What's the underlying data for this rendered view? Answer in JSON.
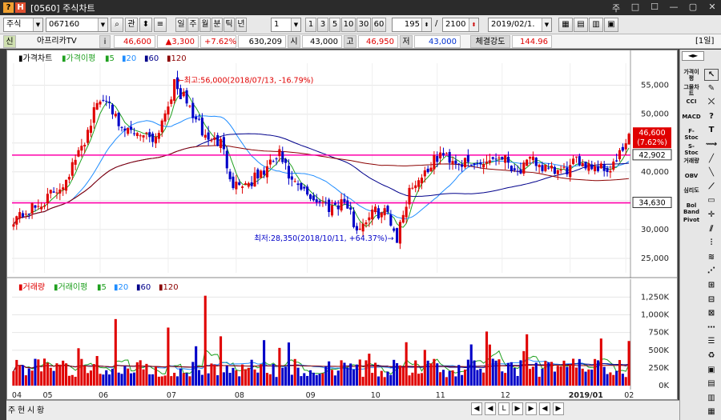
{
  "window": {
    "code": "[0560]",
    "title": "주식차트",
    "controls": [
      "주",
      "□",
      "☐",
      "—",
      "▢",
      "✕"
    ]
  },
  "toolbar": {
    "market": "주식",
    "code": "067160",
    "btn_search": "⌕",
    "btn_related": "관",
    "periods": [
      "주",
      "월",
      "분",
      "틱",
      "년"
    ],
    "interval": "1",
    "interval_buttons": [
      "1",
      "3",
      "5",
      "10",
      "30",
      "60"
    ],
    "count": "195",
    "total": "2100",
    "date": "2019/02/1․",
    "page_indicator": "[1일]"
  },
  "info": {
    "flag": "신",
    "name": "아프리카TV",
    "i": "i",
    "price": "46,600",
    "change": "▲3,300",
    "change_pct": "+7.62%",
    "volume": "630,209",
    "open_label": "시",
    "open": "43,000",
    "high_label": "고",
    "high": "46,950",
    "low_label": "저",
    "low": "43,000",
    "strength_label": "체결강도",
    "strength": "144.96"
  },
  "price_panel": {
    "legend": [
      "가격차트",
      "가격이평",
      "5",
      "20",
      "60",
      "120"
    ],
    "y_ticks": [
      "55,000",
      "50,000",
      "45,000",
      "40,000",
      "35,000",
      "30,000",
      "25,000"
    ],
    "max_note": "←최고:56,000(2018/07/13, -16.79%)",
    "min_note": "최저:28,350(2018/10/11, +64.37%)→",
    "last_price": "46,600",
    "last_pct": "(7.62%)",
    "line_upper": "42,902",
    "line_lower": "34,630",
    "line_right_value": "40,000"
  },
  "volume_panel": {
    "legend": [
      "거래량",
      "거래이평",
      "5",
      "20",
      "60",
      "120"
    ],
    "y_ticks": [
      "1,250K",
      "1,000K",
      "750K",
      "500K",
      "250K",
      "0K"
    ]
  },
  "x_axis": {
    "labels": [
      "04",
      "05",
      "06",
      "07",
      "08",
      "09",
      "10",
      "11",
      "12",
      "2019/01",
      "02"
    ]
  },
  "sidebar": {
    "buttons": [
      "가격이평",
      "그물차트",
      "CCI",
      "MACD",
      "F-Stoc",
      "S-Stoc",
      "거래량",
      "OBV",
      "심리도",
      "Bol Band",
      "Pivot"
    ]
  },
  "bottom": {
    "tabs": [
      "주",
      "현",
      "시",
      "황"
    ],
    "nav": [
      "◀",
      "◀",
      "L",
      "▶",
      "▶",
      "◀",
      "▶"
    ]
  },
  "colors": {
    "up": "#e00000",
    "down": "#0000c8",
    "ma5": "#1fa01f",
    "ma20": "#1e8cff",
    "ma60": "#00008b",
    "ma120": "#8b0000",
    "hline": "#ff00aa"
  },
  "chart_data": [
    {
      "type": "candlestick",
      "title": "가격차트",
      "y_range": [
        22500,
        58000
      ],
      "levels": [
        42902,
        34630
      ],
      "max": {
        "value": 56000,
        "date": "2018/07/13"
      },
      "min": {
        "value": 28350,
        "date": "2018/10/11"
      },
      "last": 46600,
      "anchors": [
        [
          0,
          32000
        ],
        [
          8,
          34000
        ],
        [
          16,
          38000
        ],
        [
          22,
          44000
        ],
        [
          27,
          52000
        ],
        [
          31,
          53000
        ],
        [
          34,
          47000
        ],
        [
          40,
          47000
        ],
        [
          46,
          46000
        ],
        [
          52,
          55000
        ],
        [
          56,
          52000
        ],
        [
          62,
          46000
        ],
        [
          67,
          45000
        ],
        [
          71,
          38000
        ],
        [
          76,
          38000
        ],
        [
          81,
          40000
        ],
        [
          86,
          43000
        ],
        [
          90,
          38000
        ],
        [
          95,
          36000
        ],
        [
          102,
          34000
        ],
        [
          107,
          35000
        ],
        [
          111,
          30000
        ],
        [
          116,
          33000
        ],
        [
          121,
          33000
        ],
        [
          124,
          28500
        ],
        [
          128,
          37000
        ],
        [
          133,
          40000
        ],
        [
          138,
          43000
        ],
        [
          143,
          42000
        ],
        [
          148,
          41000
        ],
        [
          153,
          42000
        ],
        [
          158,
          43000
        ],
        [
          163,
          40000
        ],
        [
          168,
          42000
        ],
        [
          173,
          40000
        ],
        [
          178,
          40000
        ],
        [
          183,
          42000
        ],
        [
          188,
          41000
        ],
        [
          193,
          40500
        ],
        [
          197,
          43500
        ],
        [
          199,
          46600
        ]
      ]
    },
    {
      "type": "bar",
      "title": "거래량",
      "y_range": [
        0,
        1300000
      ],
      "series": "volume"
    }
  ]
}
